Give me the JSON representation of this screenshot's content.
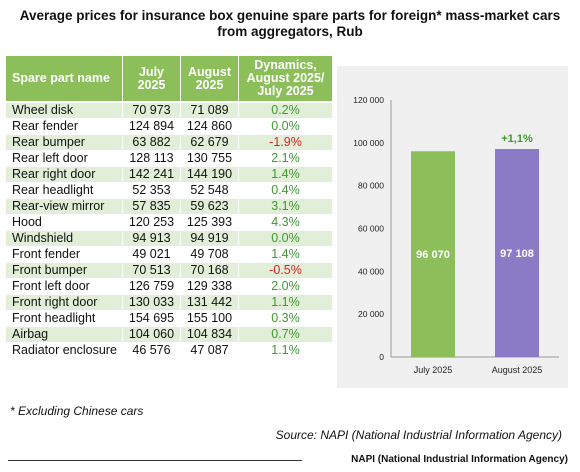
{
  "title_line1": "Average prices for insurance box genuine spare parts for foreign* mass-market cars",
  "title_line2": "from aggregators, Rub",
  "table": {
    "headers": {
      "col1": "Spare part name",
      "col2a": "July",
      "col2b": "2025",
      "col3a": "August",
      "col3b": "2025",
      "col4a": "Dynamics,",
      "col4b": "August 2025/",
      "col4c": "July 2025"
    },
    "rows": [
      {
        "name": "Wheel disk",
        "july": "70 973",
        "august": "71 089",
        "dyn": "0.2%",
        "color": "#3f9a2f"
      },
      {
        "name": "Rear fender",
        "july": "124 894",
        "august": "124 860",
        "dyn": "0.0%",
        "color": "#3f9a2f"
      },
      {
        "name": "Rear bumper",
        "july": "63 882",
        "august": "62 679",
        "dyn": "-1.9%",
        "color": "#e02020"
      },
      {
        "name": "Rear left door",
        "july": "128 113",
        "august": "130 755",
        "dyn": "2.1%",
        "color": "#3f9a2f"
      },
      {
        "name": "Rear right door",
        "july": "142 241",
        "august": "144 190",
        "dyn": "1.4%",
        "color": "#3f9a2f"
      },
      {
        "name": "Rear headlight",
        "july": "52 353",
        "august": "52 548",
        "dyn": "0.4%",
        "color": "#3f9a2f"
      },
      {
        "name": "Rear-view mirror",
        "july": "57 835",
        "august": "59 623",
        "dyn": "3.1%",
        "color": "#3f9a2f"
      },
      {
        "name": "Hood",
        "july": "120 253",
        "august": "125 393",
        "dyn": "4.3%",
        "color": "#3f9a2f"
      },
      {
        "name": "Windshield",
        "july": "94 913",
        "august": "94 919",
        "dyn": "0.0%",
        "color": "#3f9a2f"
      },
      {
        "name": "Front fender",
        "july": "49 021",
        "august": "49 708",
        "dyn": "1.4%",
        "color": "#3f9a2f"
      },
      {
        "name": "Front bumper",
        "july": "70 513",
        "august": "70 168",
        "dyn": "-0.5%",
        "color": "#e02020"
      },
      {
        "name": "Front left door",
        "july": "126 759",
        "august": "129 338",
        "dyn": "2.0%",
        "color": "#3f9a2f"
      },
      {
        "name": "Front right door",
        "july": "130 033",
        "august": "131 442",
        "dyn": "1.1%",
        "color": "#3f9a2f"
      },
      {
        "name": "Front headlight",
        "july": "154 695",
        "august": "155 100",
        "dyn": "0.3%",
        "color": "#3f9a2f"
      },
      {
        "name": "Airbag",
        "july": "104 060",
        "august": "104 834",
        "dyn": "0.7%",
        "color": "#3f9a2f"
      },
      {
        "name": "Radiator enclosure",
        "july": "46 576",
        "august": "47 087",
        "dyn": "1.1%",
        "color": "#3f9a2f"
      }
    ]
  },
  "chart_data": {
    "type": "bar",
    "categories": [
      "July 2025",
      "August 2025"
    ],
    "values": [
      96070,
      97108
    ],
    "value_labels": [
      "96 070",
      "97 108"
    ],
    "bar_colors": [
      "#8cbf5a",
      "#8b7bc7"
    ],
    "annotation": "+1,1%",
    "annotation_color": "#3f9a2f",
    "ylim": [
      0,
      120000
    ],
    "yticks": [
      0,
      20000,
      40000,
      60000,
      80000,
      100000,
      120000
    ],
    "ytick_labels": [
      "0",
      "20 000",
      "40 000",
      "60 000",
      "80 000",
      "100 000",
      "120 000"
    ],
    "grid": false,
    "title": "",
    "xlabel": "",
    "ylabel": ""
  },
  "footnote": "* Excluding Chinese cars",
  "source": "Source: NAPI (National Industrial Information Agency)",
  "brand": "NAPI (National Industrial Information Agency)"
}
